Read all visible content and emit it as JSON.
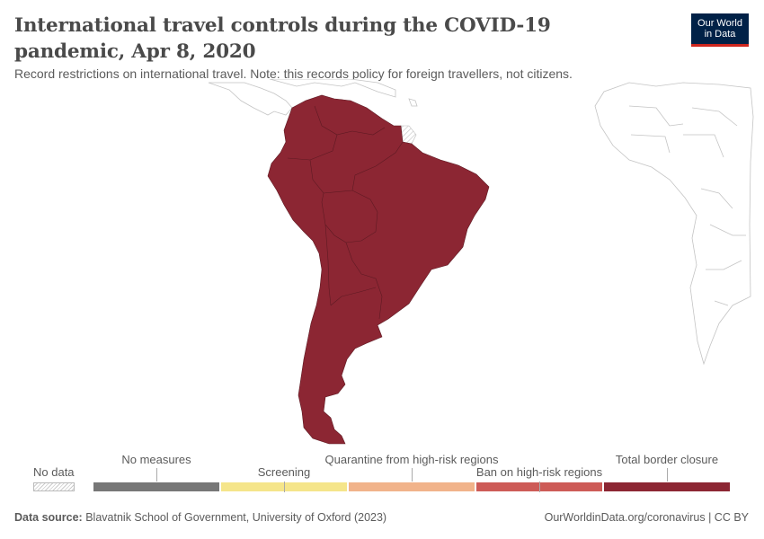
{
  "title": "International travel controls during the COVID-19 pandemic, Apr 8, 2020",
  "subtitle": "Record restrictions on international travel. Note: this records policy for foreign travellers, not citizens.",
  "logo": {
    "line1": "Our World",
    "line2": "in Data",
    "bg_color": "#002147",
    "accent_color": "#ce261e"
  },
  "map": {
    "region": "South America",
    "fill_color": "#8c2633",
    "no_data_pattern": "hatched",
    "shown_category": "Total border closure"
  },
  "legend": {
    "no_data_label": "No data",
    "categories": [
      {
        "label": "No measures",
        "color": "#777777"
      },
      {
        "label": "Screening",
        "color": "#f5e58a"
      },
      {
        "label": "Quarantine from high-risk regions",
        "color": "#f1b38a"
      },
      {
        "label": "Ban on high-risk regions",
        "color": "#cd5b57"
      },
      {
        "label": "Total border closure",
        "color": "#8c2633"
      }
    ]
  },
  "footer": {
    "source_label": "Data source:",
    "source_text": "Blavatnik School of Government, University of Oxford (2023)",
    "right_text": "OurWorldinData.org/coronavirus | CC BY"
  }
}
